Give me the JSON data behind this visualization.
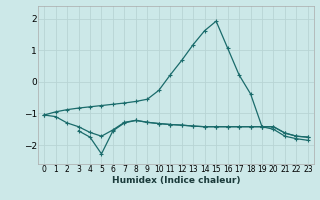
{
  "xlabel": "Humidex (Indice chaleur)",
  "xlim": [
    -0.5,
    23.5
  ],
  "ylim": [
    -2.6,
    2.4
  ],
  "yticks": [
    -2,
    -1,
    0,
    1,
    2
  ],
  "xticks": [
    0,
    1,
    2,
    3,
    4,
    5,
    6,
    7,
    8,
    9,
    10,
    11,
    12,
    13,
    14,
    15,
    16,
    17,
    18,
    19,
    20,
    21,
    22,
    23
  ],
  "bg_color": "#cce8e8",
  "grid_color": "#b8d4d4",
  "line_color": "#1a6b6b",
  "series1_x": [
    0,
    1,
    2,
    3,
    4,
    5,
    6,
    7,
    8,
    9,
    10,
    11,
    12,
    13,
    14,
    15,
    16,
    17,
    18,
    19,
    20,
    21,
    22,
    23
  ],
  "series1_y": [
    -1.05,
    -0.95,
    -0.88,
    -0.83,
    -0.79,
    -0.75,
    -0.71,
    -0.67,
    -0.62,
    -0.55,
    -0.27,
    0.22,
    0.68,
    1.18,
    1.62,
    1.92,
    1.07,
    0.22,
    -0.38,
    -1.42,
    -1.5,
    -1.72,
    -1.8,
    -1.85
  ],
  "series2_x": [
    0,
    1,
    2,
    3,
    4,
    5,
    6,
    7,
    8,
    9,
    10,
    11,
    12,
    13,
    14,
    15,
    16,
    17,
    18,
    19,
    20,
    21,
    22,
    23
  ],
  "series2_y": [
    -1.05,
    -1.1,
    -1.3,
    -1.42,
    -1.6,
    -1.72,
    -1.52,
    -1.28,
    -1.22,
    -1.28,
    -1.32,
    -1.35,
    -1.37,
    -1.4,
    -1.42,
    -1.42,
    -1.42,
    -1.42,
    -1.42,
    -1.42,
    -1.42,
    -1.62,
    -1.72,
    -1.75
  ],
  "series3_x": [
    3,
    4,
    5,
    6,
    7,
    8,
    9,
    10,
    11,
    12,
    13,
    14,
    15,
    16,
    17,
    18,
    19,
    20,
    21,
    22,
    23
  ],
  "series3_y": [
    -1.55,
    -1.75,
    -2.28,
    -1.55,
    -1.3,
    -1.22,
    -1.28,
    -1.32,
    -1.35,
    -1.37,
    -1.4,
    -1.42,
    -1.42,
    -1.42,
    -1.42,
    -1.42,
    -1.42,
    -1.42,
    -1.62,
    -1.72,
    -1.75
  ]
}
